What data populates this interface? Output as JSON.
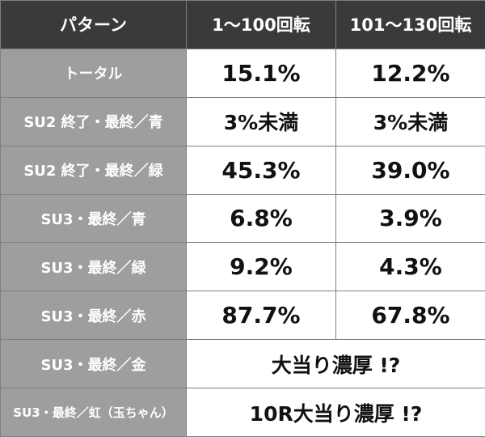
{
  "table": {
    "headers": [
      "パターン",
      "1〜100回転",
      "101〜130回転"
    ],
    "rows": [
      {
        "label": "トータル",
        "col1": "15.1%",
        "col2": "12.2%"
      },
      {
        "label": "SU2 終了・最終／青",
        "col1": "3%未満",
        "col2": "3%未満"
      },
      {
        "label": "SU2 終了・最終／緑",
        "col1": "45.3%",
        "col2": "39.0%"
      },
      {
        "label": "SU3・最終／青",
        "col1": "6.8%",
        "col2": "3.9%"
      },
      {
        "label": "SU3・最終／緑",
        "col1": "9.2%",
        "col2": "4.3%"
      },
      {
        "label": "SU3・最終／赤",
        "col1": "87.7%",
        "col2": "67.8%"
      },
      {
        "label": "SU3・最終／金",
        "merged": "大当り濃厚 !?"
      },
      {
        "label": "SU3・最終／虹（玉ちゃん）",
        "merged": "10R大当り濃厚 !?"
      }
    ]
  }
}
